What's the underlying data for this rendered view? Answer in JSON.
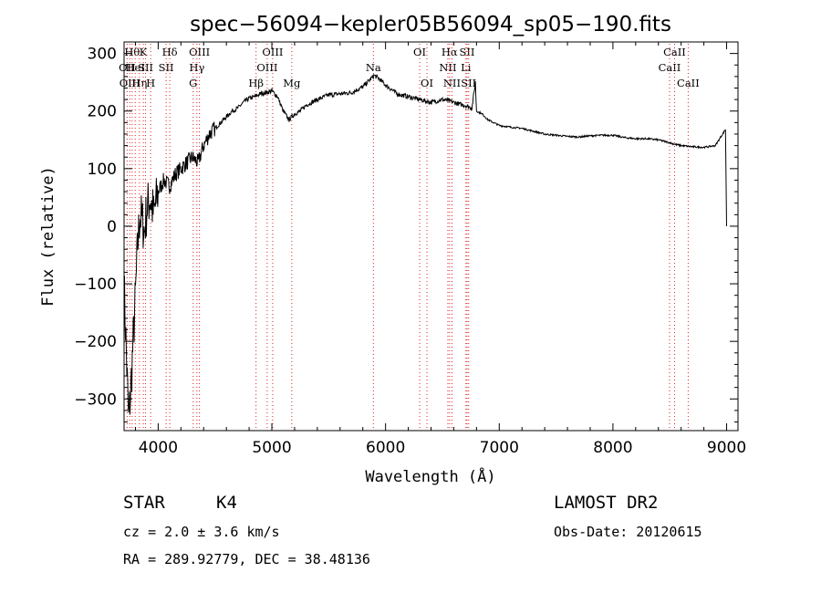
{
  "chart_data": {
    "type": "line",
    "title": "spec−56094−kepler05B56094_sp05−190.fits",
    "xlabel": "Wavelength (Å)",
    "ylabel": "Flux (relative)",
    "xlim": [
      3700,
      9100
    ],
    "ylim": [
      -355,
      320
    ],
    "x_ticks": [
      4000,
      5000,
      6000,
      7000,
      8000,
      9000
    ],
    "x_tick_labels": [
      "4000",
      "5000",
      "6000",
      "7000",
      "8000",
      "9000"
    ],
    "y_ticks": [
      -300,
      -200,
      -100,
      0,
      100,
      200,
      300
    ],
    "y_tick_labels": [
      "−300",
      "−200",
      "−100",
      "0",
      "100",
      "200",
      "300"
    ],
    "grid": false,
    "series": [
      {
        "x": [
          3700,
          3740,
          3760,
          3780,
          3800,
          3820,
          3840,
          3860,
          3880,
          3900,
          3930,
          3960,
          4000,
          4050,
          4100,
          4150,
          4200,
          4250,
          4300,
          4350,
          4400,
          4450,
          4500,
          4550,
          4600,
          4650,
          4700,
          4750,
          4800,
          4850,
          4900,
          4950,
          5000,
          5050,
          5100,
          5150,
          5200,
          5250,
          5300,
          5400,
          5500,
          5600,
          5700,
          5800,
          5850,
          5900,
          5950,
          6000,
          6050,
          6100,
          6200,
          6300,
          6400,
          6500,
          6550,
          6600,
          6650,
          6700,
          6760,
          6790,
          6800,
          6850,
          6900,
          6950,
          7000,
          7100,
          7200,
          7300,
          7400,
          7500,
          7600,
          7700,
          7800,
          7900,
          8000,
          8100,
          8200,
          8300,
          8400,
          8500,
          8550,
          8600,
          8700,
          8800,
          8900,
          8990,
          9000
        ],
        "y": [
          -100,
          -340,
          -280,
          -200,
          -120,
          -30,
          20,
          10,
          -10,
          30,
          50,
          20,
          60,
          80,
          70,
          90,
          100,
          110,
          120,
          110,
          140,
          160,
          170,
          180,
          190,
          200,
          205,
          215,
          222,
          225,
          230,
          232,
          235,
          225,
          200,
          185,
          195,
          200,
          210,
          220,
          228,
          230,
          232,
          242,
          252,
          262,
          255,
          245,
          238,
          230,
          225,
          220,
          215,
          220,
          218,
          215,
          212,
          210,
          205,
          250,
          200,
          195,
          185,
          180,
          175,
          172,
          170,
          165,
          160,
          158,
          156,
          155,
          157,
          158,
          158,
          154,
          152,
          152,
          150,
          145,
          142,
          140,
          138,
          137,
          140,
          168,
          0
        ]
      }
    ],
    "lines": [
      {
        "x": 3727,
        "label": "OII",
        "row": 1
      },
      {
        "x": 3750,
        "label": "OIII",
        "row": 2
      },
      {
        "x": 3771,
        "label": "Hθ",
        "row": 0
      },
      {
        "x": 3798,
        "label": "HeI",
        "row": 1
      },
      {
        "x": 3835,
        "label": "Hη",
        "row": 2
      },
      {
        "x": 3869,
        "label": "K",
        "row": 0
      },
      {
        "x": 3889,
        "label": "SII",
        "row": 1
      },
      {
        "x": 3934,
        "label": "H",
        "row": 2
      },
      {
        "x": 4102,
        "label": "Hδ",
        "row": 0
      },
      {
        "x": 4070,
        "label": "SII",
        "row": 1
      },
      {
        "x": 4308,
        "label": "G",
        "row": 2
      },
      {
        "x": 4341,
        "label": "Hγ",
        "row": 1
      },
      {
        "x": 4363,
        "label": "OIII",
        "row": 0
      },
      {
        "x": 4861,
        "label": "Hβ",
        "row": 2
      },
      {
        "x": 4959,
        "label": "OIII",
        "row": 1
      },
      {
        "x": 5007,
        "label": "OIII",
        "row": 0
      },
      {
        "x": 5175,
        "label": "Mg",
        "row": 2
      },
      {
        "x": 5893,
        "label": "Na",
        "row": 1
      },
      {
        "x": 6300,
        "label": "OI",
        "row": 0
      },
      {
        "x": 6364,
        "label": "OI",
        "row": 2
      },
      {
        "x": 6548,
        "label": "NII",
        "row": 1
      },
      {
        "x": 6563,
        "label": "Hα",
        "row": 0
      },
      {
        "x": 6584,
        "label": "NII",
        "row": 2
      },
      {
        "x": 6707,
        "label": "Li",
        "row": 1
      },
      {
        "x": 6717,
        "label": "SII",
        "row": 0
      },
      {
        "x": 6731,
        "label": "SII",
        "row": 2
      },
      {
        "x": 8498,
        "label": "CaII",
        "row": 1
      },
      {
        "x": 8542,
        "label": "CaII",
        "row": 0
      },
      {
        "x": 8662,
        "label": "CaII",
        "row": 2
      }
    ]
  },
  "info": {
    "class_label": "STAR",
    "subclass_label": "K4",
    "survey_label": "LAMOST DR2",
    "cz_text": "cz = 2.0 ± 3.6 km/s",
    "obsdate_text": "Obs-Date: 20120615",
    "radec_text": "RA = 289.92779, DEC =  38.48136"
  }
}
